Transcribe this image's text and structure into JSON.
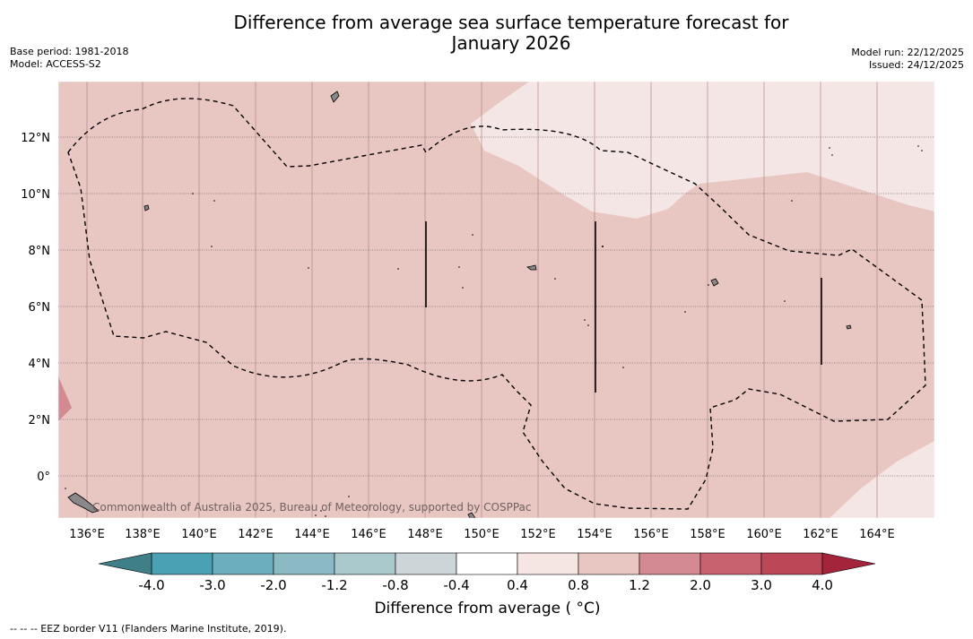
{
  "header": {
    "title_line1": "Difference from average sea surface temperature forecast for",
    "title_line2": "January 2026",
    "base_period": "Base period: 1981-2018",
    "model": "Model: ACCESS-S2",
    "model_run": "Model run: 22/12/2025",
    "issued": "Issued: 24/12/2025"
  },
  "map": {
    "longitude_labels": [
      "136°E",
      "138°E",
      "140°E",
      "142°E",
      "144°E",
      "146°E",
      "148°E",
      "150°E",
      "152°E",
      "154°E",
      "156°E",
      "158°E",
      "160°E",
      "162°E",
      "164°E"
    ],
    "latitude_labels": [
      "12°N",
      "10°N",
      "8°N",
      "6°N",
      "4°N",
      "2°N",
      "0°"
    ],
    "watermark": "Commonwealth of Australia 2025, Bureau of Meteorology, supported by COSPPac",
    "colors": {
      "band_0_4_to_0_8": "#f4e6e4",
      "band_0_8_to_1_2": "#e8c6c2",
      "band_1_2_to_2_0": "#d48a92"
    }
  },
  "colorbar": {
    "tick_labels": [
      "-4.0",
      "-3.0",
      "-2.0",
      "-1.2",
      "-0.8",
      "-0.4",
      "0.4",
      "0.8",
      "1.2",
      "2.0",
      "3.0",
      "4.0"
    ],
    "segment_colors": [
      "#4aa1b3",
      "#6caebd",
      "#8bbac5",
      "#a9c9cd",
      "#ccd5d7",
      "#ffffff",
      "#f5e6e4",
      "#e8c6c2",
      "#d48a92",
      "#c7636f",
      "#bb4757"
    ],
    "under_color": "#3f7f87",
    "over_color": "#a3243b",
    "label": "Difference from average ( °C)"
  },
  "footnote": "--  --  -- EEZ border V11 (Flanders Marine Institute, 2019)."
}
